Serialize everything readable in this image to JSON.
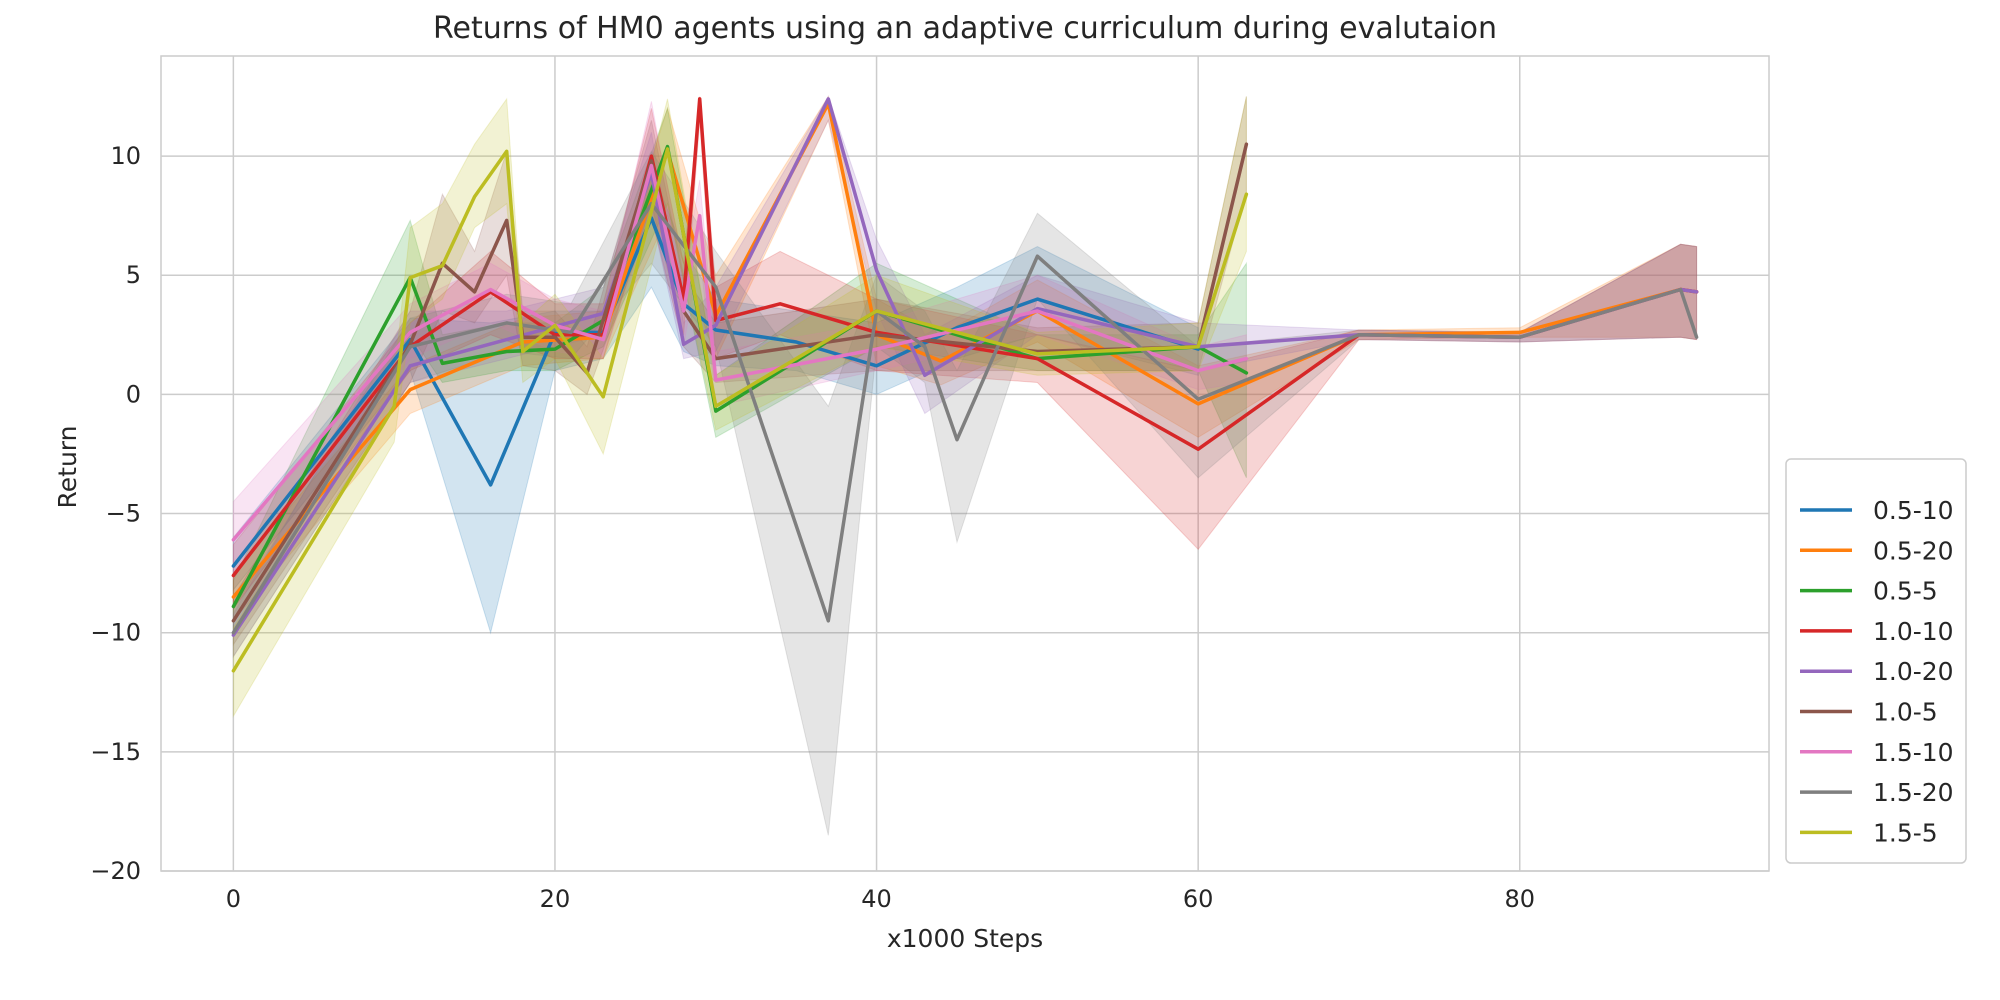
{
  "chart_data": {
    "type": "line",
    "title": "Returns of HM0 agents using an adaptive curriculum during evalutaion",
    "xlabel": "x1000 Steps",
    "ylabel": "Return",
    "xlim": [
      -4.5,
      95.5
    ],
    "ylim": [
      -20,
      14.2
    ],
    "xticks": [
      0,
      20,
      40,
      60,
      80
    ],
    "yticks": [
      -20,
      -15,
      -10,
      -5,
      0,
      5,
      10
    ],
    "xtick_labels": [
      "0",
      "20",
      "40",
      "60",
      "80"
    ],
    "ytick_labels": [
      "−20",
      "−15",
      "−10",
      "−5",
      "0",
      "5",
      "10"
    ],
    "grid": true,
    "legend_position": "lower-right-outside",
    "series": [
      {
        "name": "0.5-10",
        "color": "#1f77b4",
        "x": [
          0,
          11,
          16,
          20,
          23,
          26,
          28,
          30,
          35,
          40,
          45,
          50,
          60
        ],
        "y": [
          -7.2,
          2.3,
          -3.8,
          2.6,
          2.6,
          7.4,
          3.8,
          2.7,
          2.2,
          1.2,
          2.8,
          4.0,
          1.9
        ],
        "lower": [
          -8.2,
          1.0,
          -10.0,
          1.0,
          1.5,
          4.5,
          1.8,
          1.2,
          1.0,
          0.0,
          1.5,
          2.5,
          0.8
        ],
        "upper": [
          -6.0,
          3.2,
          3.0,
          3.5,
          3.5,
          9.5,
          6.0,
          4.0,
          3.5,
          3.0,
          4.5,
          6.2,
          2.8
        ]
      },
      {
        "name": "0.5-20",
        "color": "#ff7f0e",
        "x": [
          0,
          11,
          18,
          23,
          27,
          30,
          37,
          40,
          44,
          50,
          60,
          70,
          80,
          90,
          91
        ],
        "y": [
          -8.5,
          0.2,
          2.2,
          2.4,
          10.2,
          3.3,
          12.2,
          2.5,
          1.4,
          3.5,
          -0.4,
          2.5,
          2.6,
          4.4,
          4.3
        ],
        "lower": [
          -9.5,
          -0.8,
          1.2,
          1.5,
          7.5,
          1.5,
          11.5,
          1.2,
          0.4,
          2.2,
          -1.8,
          2.3,
          2.4,
          2.4,
          2.3
        ],
        "upper": [
          -7.5,
          1.2,
          3.2,
          3.5,
          12.0,
          5.0,
          12.5,
          4.0,
          2.5,
          4.8,
          1.2,
          2.7,
          2.8,
          6.3,
          6.2
        ]
      },
      {
        "name": "0.5-5",
        "color": "#2ca02c",
        "x": [
          0,
          11,
          13,
          17,
          20,
          23,
          27,
          30,
          40,
          50,
          60,
          63
        ],
        "y": [
          -8.9,
          4.9,
          1.3,
          1.8,
          1.9,
          3.1,
          10.4,
          -0.7,
          3.5,
          1.5,
          2.0,
          0.9
        ],
        "lower": [
          -10.0,
          2.5,
          0.5,
          1.0,
          1.0,
          2.0,
          8.0,
          -1.8,
          2.0,
          1.0,
          1.0,
          -3.5
        ],
        "upper": [
          -7.8,
          7.3,
          2.5,
          3.0,
          3.0,
          4.5,
          12.0,
          0.8,
          5.5,
          2.5,
          2.5,
          5.5
        ]
      },
      {
        "name": "1.0-10",
        "color": "#d62728",
        "x": [
          0,
          11,
          16,
          20,
          23,
          26,
          28,
          29,
          30,
          34,
          40,
          50,
          60,
          70,
          80,
          90,
          91
        ],
        "y": [
          -7.6,
          2.0,
          4.3,
          2.5,
          2.5,
          10.0,
          4.0,
          12.4,
          3.1,
          3.8,
          2.6,
          1.5,
          -2.3,
          2.5,
          2.4,
          4.4,
          4.3
        ],
        "lower": [
          -9.0,
          1.0,
          2.5,
          1.5,
          1.5,
          8.0,
          2.5,
          11.5,
          1.5,
          2.5,
          1.0,
          0.5,
          -6.5,
          2.3,
          2.2,
          2.4,
          2.3
        ],
        "upper": [
          -6.3,
          3.0,
          6.0,
          3.8,
          3.8,
          12.0,
          5.5,
          12.5,
          4.5,
          6.0,
          4.0,
          2.5,
          1.0,
          2.7,
          2.6,
          6.3,
          6.2
        ]
      },
      {
        "name": "1.0-20",
        "color": "#9467bd",
        "x": [
          0,
          11,
          17,
          23,
          26,
          28,
          30,
          37,
          40,
          43,
          50,
          60,
          70,
          80,
          90,
          91
        ],
        "y": [
          -10.1,
          1.2,
          2.3,
          3.4,
          9.3,
          2.1,
          2.9,
          12.4,
          5.2,
          0.8,
          3.6,
          2.0,
          2.5,
          2.4,
          4.4,
          4.3
        ],
        "lower": [
          -11.0,
          0.5,
          1.5,
          2.5,
          7.5,
          1.5,
          1.8,
          11.5,
          3.5,
          -0.8,
          2.5,
          1.0,
          2.3,
          2.2,
          2.4,
          2.3
        ],
        "upper": [
          -9.2,
          3.5,
          3.5,
          4.5,
          11.0,
          3.0,
          4.5,
          12.5,
          6.5,
          2.5,
          5.0,
          3.0,
          2.7,
          2.6,
          6.3,
          6.2
        ]
      },
      {
        "name": "1.0-5",
        "color": "#8c564b",
        "x": [
          0,
          11,
          13,
          15,
          17,
          18,
          20,
          22,
          26,
          28,
          30,
          40,
          50,
          60,
          63
        ],
        "y": [
          -9.5,
          2.1,
          5.5,
          4.3,
          7.3,
          2.4,
          2.4,
          0.9,
          9.8,
          3.5,
          1.5,
          2.5,
          1.8,
          2.0,
          10.5
        ],
        "lower": [
          -10.5,
          0.5,
          3.5,
          3.0,
          5.0,
          1.2,
          1.0,
          0.0,
          7.5,
          2.0,
          0.5,
          1.0,
          1.0,
          1.0,
          8.5
        ],
        "upper": [
          -8.5,
          3.5,
          8.4,
          6.0,
          10.2,
          3.5,
          3.5,
          2.0,
          11.5,
          5.0,
          3.0,
          4.0,
          2.8,
          3.0,
          12.5
        ]
      },
      {
        "name": "1.5-10",
        "color": "#e377c2",
        "x": [
          0,
          11,
          16,
          20,
          23,
          26,
          28,
          29,
          30,
          40,
          50,
          60,
          63
        ],
        "y": [
          -6.1,
          2.6,
          4.4,
          2.9,
          2.3,
          9.6,
          3.5,
          7.5,
          0.6,
          1.9,
          3.5,
          1.0,
          1.5
        ],
        "lower": [
          -7.5,
          1.5,
          3.0,
          1.8,
          1.5,
          7.5,
          2.0,
          6.0,
          -0.5,
          1.0,
          2.5,
          0.2,
          0.5
        ],
        "upper": [
          -4.5,
          3.8,
          5.5,
          4.0,
          3.5,
          12.3,
          5.0,
          9.0,
          1.8,
          3.0,
          5.0,
          2.0,
          2.5
        ]
      },
      {
        "name": "1.5-20",
        "color": "#7f7f7f",
        "x": [
          0,
          11,
          17,
          21,
          26,
          30,
          37,
          40,
          43,
          45,
          50,
          60,
          70,
          80,
          90,
          91
        ],
        "y": [
          -10.0,
          2.0,
          3.0,
          2.6,
          8.0,
          4.5,
          -9.5,
          3.5,
          2.0,
          -1.9,
          5.8,
          -0.2,
          2.5,
          2.4,
          4.4,
          2.4
        ],
        "lower": [
          -11.0,
          0.5,
          1.8,
          1.5,
          5.5,
          2.0,
          -18.5,
          2.0,
          0.5,
          -6.2,
          4.0,
          -3.5,
          2.3,
          2.2,
          2.4,
          2.3
        ],
        "upper": [
          -9.0,
          3.2,
          4.2,
          3.8,
          10.2,
          6.0,
          -0.5,
          5.0,
          3.5,
          1.0,
          7.6,
          2.0,
          2.7,
          2.6,
          6.3,
          6.2
        ]
      },
      {
        "name": "1.5-5",
        "color": "#bcbd22",
        "x": [
          0,
          10,
          11,
          13,
          15,
          17,
          18,
          20,
          23,
          27,
          30,
          40,
          50,
          60,
          63
        ],
        "y": [
          -11.6,
          -0.5,
          4.9,
          5.4,
          8.3,
          10.2,
          1.8,
          2.9,
          -0.1,
          10.3,
          -0.5,
          3.5,
          1.7,
          2.0,
          8.4
        ],
        "lower": [
          -13.5,
          -2.0,
          3.0,
          4.0,
          7.0,
          8.0,
          0.5,
          1.5,
          -2.5,
          8.0,
          -1.5,
          2.0,
          0.8,
          1.0,
          6.0
        ],
        "upper": [
          -9.8,
          0.8,
          7.0,
          8.0,
          10.5,
          12.4,
          3.0,
          4.2,
          1.5,
          12.4,
          0.8,
          5.0,
          2.6,
          3.0,
          12.5
        ]
      }
    ]
  }
}
